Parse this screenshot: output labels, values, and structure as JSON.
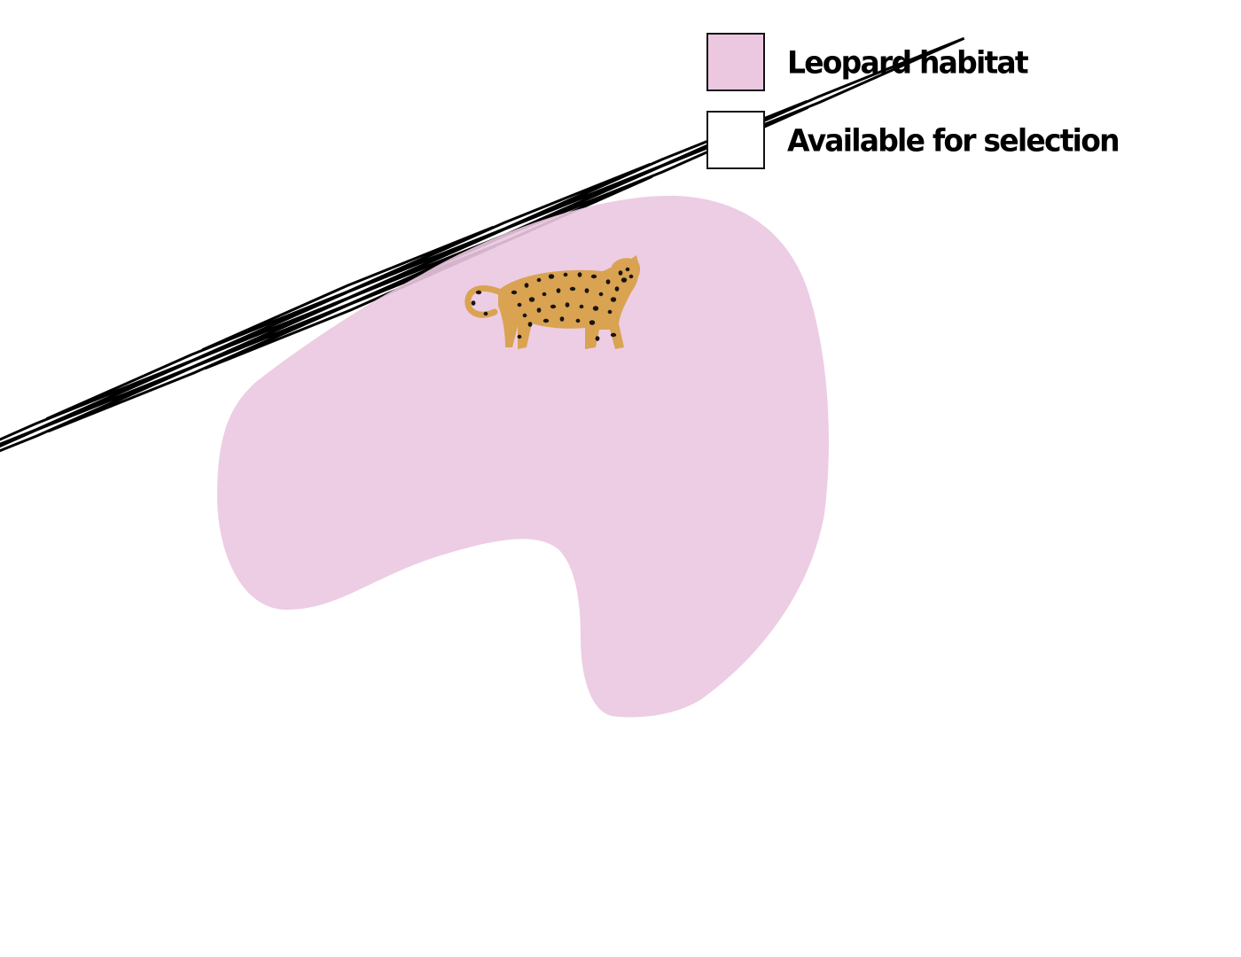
{
  "legend": {
    "items": [
      {
        "label": "Leopard habitat",
        "color": "#ebc8e0"
      },
      {
        "label": "Available for selection",
        "color": "#ffffff"
      }
    ]
  },
  "grid": {
    "rows": 4,
    "cols": 4,
    "line_color": "#000000"
  },
  "habitat": {
    "color": "#ebc8e0",
    "opacity": 0.9
  },
  "animal": {
    "icon": "leopard-icon",
    "body_color": "#d9a352",
    "spot_color": "#1a1410"
  }
}
